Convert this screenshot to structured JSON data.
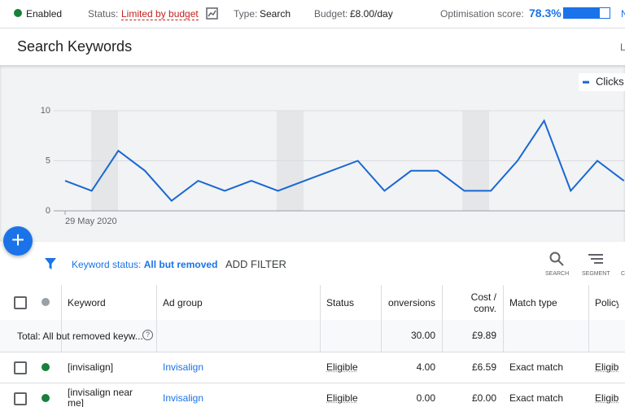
{
  "status_bar": {
    "enabled": "Enabled",
    "status_label": "Status:",
    "status_value": "Limited by budget",
    "type_label": "Type:",
    "type_value": "Search",
    "budget_label": "Budget:",
    "budget_value": "£8.00/day",
    "optimisation_label": "Optimisation score:",
    "optimisation_value": 78.3,
    "optimisation_value_label": "78.3%",
    "edge_text": "N"
  },
  "header": {
    "title": "Search Keywords",
    "edge_text": "L"
  },
  "chart_data": {
    "type": "line",
    "categories": [
      "29 May 2020",
      null,
      null,
      null,
      null,
      null,
      null,
      null,
      null,
      null,
      null,
      null,
      null,
      null,
      null,
      null,
      null,
      null,
      null,
      null,
      null,
      null
    ],
    "series": [
      {
        "name": "Clicks",
        "color": "#1967d2",
        "values": [
          3,
          2,
          6,
          4,
          1,
          3,
          2,
          3,
          2,
          3,
          4,
          5,
          2,
          4,
          4,
          2,
          2,
          5,
          9,
          2,
          5,
          3
        ]
      }
    ],
    "ylim": [
      0,
      10
    ],
    "yticks": [
      0,
      5,
      10
    ],
    "grid": true,
    "legend": "top-right"
  },
  "filter_bar": {
    "filter_label": "Keyword status:",
    "filter_value": "All but removed",
    "add_filter": "ADD FILTER",
    "search": "SEARCH",
    "segment": "SEGMENT",
    "edge_text": "C"
  },
  "table": {
    "columns": [
      "Keyword",
      "Ad group",
      "Status",
      "Conversions",
      "Cost / conv.",
      "Match type",
      "Policy d"
    ],
    "total": {
      "label": "Total: All but removed keyw...",
      "conversions": "30.00",
      "cost_conv": "£9.89"
    },
    "rows": [
      [
        "[invisalign]",
        "Invisalign",
        "Eligible",
        "4.00",
        "£6.59",
        "Exact match",
        "Eligible"
      ],
      [
        "[invisalign near me]",
        "Invisalign",
        "Eligible",
        "0.00",
        "£0.00",
        "Exact match",
        "Eligible"
      ]
    ]
  }
}
